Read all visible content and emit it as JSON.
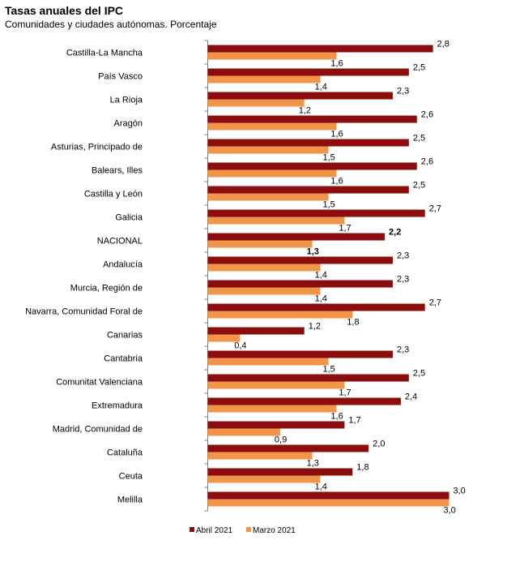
{
  "chart_data": {
    "type": "bar",
    "orientation": "horizontal",
    "title": "Tasas anuales del IPC",
    "subtitle": "Comunidades y ciudades autónomas. Porcentaje",
    "categories": [
      "Castilla-La Mancha",
      "País Vasco",
      "La Rioja",
      "Aragón",
      "Asturias, Principado de",
      "Balears, Illes",
      "Castilla y León",
      "Galicia",
      "NACIONAL",
      "Andalucía",
      "Murcia, Región de",
      "Navarra, Comunidad Foral de",
      "Canarias",
      "Cantabria",
      "Comunitat Valenciana",
      "Extremadura",
      "Madrid, Comunidad de",
      "Cataluña",
      "Ceuta",
      "Melilla"
    ],
    "series": [
      {
        "name": "Abril 2021",
        "color": "#8b0d0d",
        "values": [
          2.8,
          2.5,
          2.3,
          2.6,
          2.5,
          2.6,
          2.5,
          2.7,
          2.2,
          2.3,
          2.3,
          2.7,
          1.2,
          2.3,
          2.5,
          2.4,
          1.7,
          2.0,
          1.8,
          3.0
        ],
        "labels": [
          "2,8",
          "2,5",
          "2,3",
          "2,6",
          "2,5",
          "2,6",
          "2,5",
          "2,7",
          "2,2",
          "2,3",
          "2,3",
          "2,7",
          "1,2",
          "2,3",
          "2,5",
          "2,4",
          "1,7",
          "2,0",
          "1,8",
          "3,0"
        ]
      },
      {
        "name": "Marzo 2021",
        "color": "#f0954a",
        "values": [
          1.6,
          1.4,
          1.2,
          1.6,
          1.5,
          1.6,
          1.5,
          1.7,
          1.3,
          1.4,
          1.4,
          1.8,
          0.4,
          1.5,
          1.7,
          1.6,
          0.9,
          1.3,
          1.4,
          3.0
        ],
        "labels": [
          "1,6",
          "1,4",
          "1,2",
          "1,6",
          "1,5",
          "1,6",
          "1,5",
          "1,7",
          "1,3",
          "1,4",
          "1,4",
          "1,8",
          "0,4",
          "1,5",
          "1,7",
          "1,6",
          "0,9",
          "1,3",
          "1,4",
          "3,0"
        ]
      }
    ],
    "highlight_category": "NACIONAL",
    "xlim": [
      0,
      3.0
    ],
    "gridlines": false,
    "legend_position": "bottom"
  }
}
